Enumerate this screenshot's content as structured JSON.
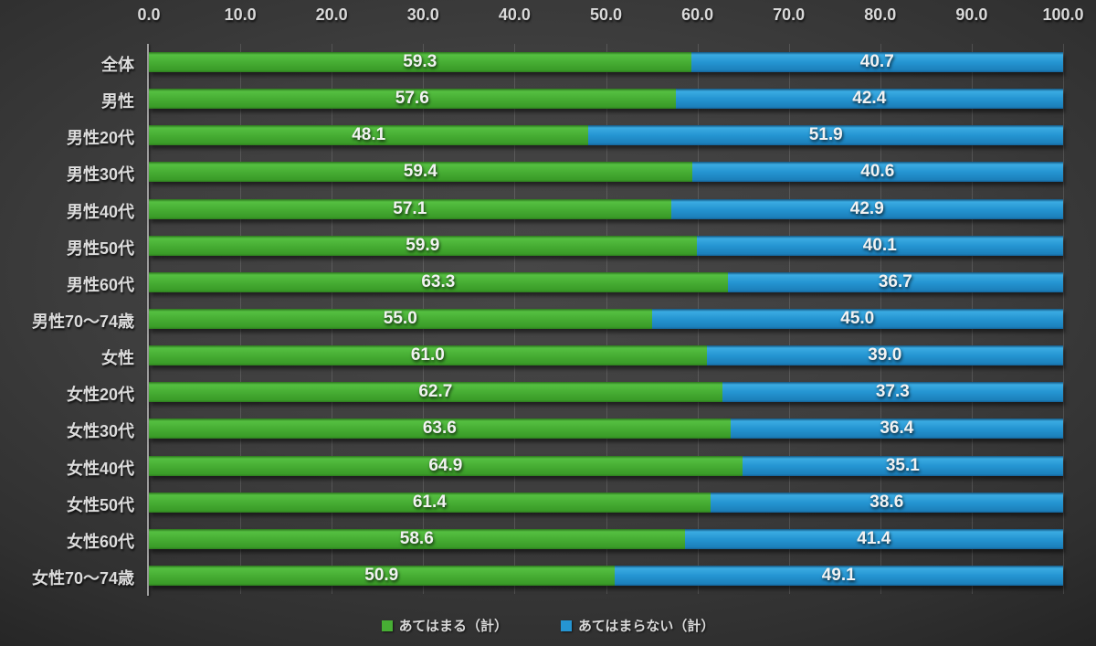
{
  "chart_data": {
    "type": "bar",
    "orientation": "horizontal",
    "stacked": true,
    "grid": true,
    "axis_position": "top",
    "legend_position": "bottom",
    "xlim": [
      0,
      100
    ],
    "x_ticks": [
      "0.0",
      "10.0",
      "20.0",
      "30.0",
      "40.0",
      "50.0",
      "60.0",
      "70.0",
      "80.0",
      "90.0",
      "100.0"
    ],
    "categories": [
      "全体",
      "男性",
      "男性20代",
      "男性30代",
      "男性40代",
      "男性50代",
      "男性60代",
      "男性70～74歳",
      "女性",
      "女性20代",
      "女性30代",
      "女性40代",
      "女性50代",
      "女性60代",
      "女性70～74歳"
    ],
    "series": [
      {
        "id": "applies",
        "name": "あてはまる（計）",
        "color": "#47ae34",
        "values": [
          59.3,
          57.6,
          48.1,
          59.4,
          57.1,
          59.9,
          63.3,
          55.0,
          61.0,
          62.7,
          63.6,
          64.9,
          61.4,
          58.6,
          50.9
        ]
      },
      {
        "id": "not-applies",
        "name": "あてはまらない（計）",
        "color": "#2595d2",
        "values": [
          40.7,
          42.4,
          51.9,
          40.6,
          42.9,
          40.1,
          36.7,
          45.0,
          39.0,
          37.3,
          36.4,
          35.1,
          38.6,
          41.4,
          49.1
        ]
      }
    ],
    "value_label_format": "one_decimal",
    "colors": {
      "background_center": "#474747",
      "background_edge": "#1c1c1c",
      "gridline": "rgba(255,255,255,0.13)",
      "axis_line": "#9e9e9e",
      "tick_text": "#d9d9d9",
      "category_text": "#dcdcdc",
      "bar_value_text": "#f2f2f2"
    }
  }
}
